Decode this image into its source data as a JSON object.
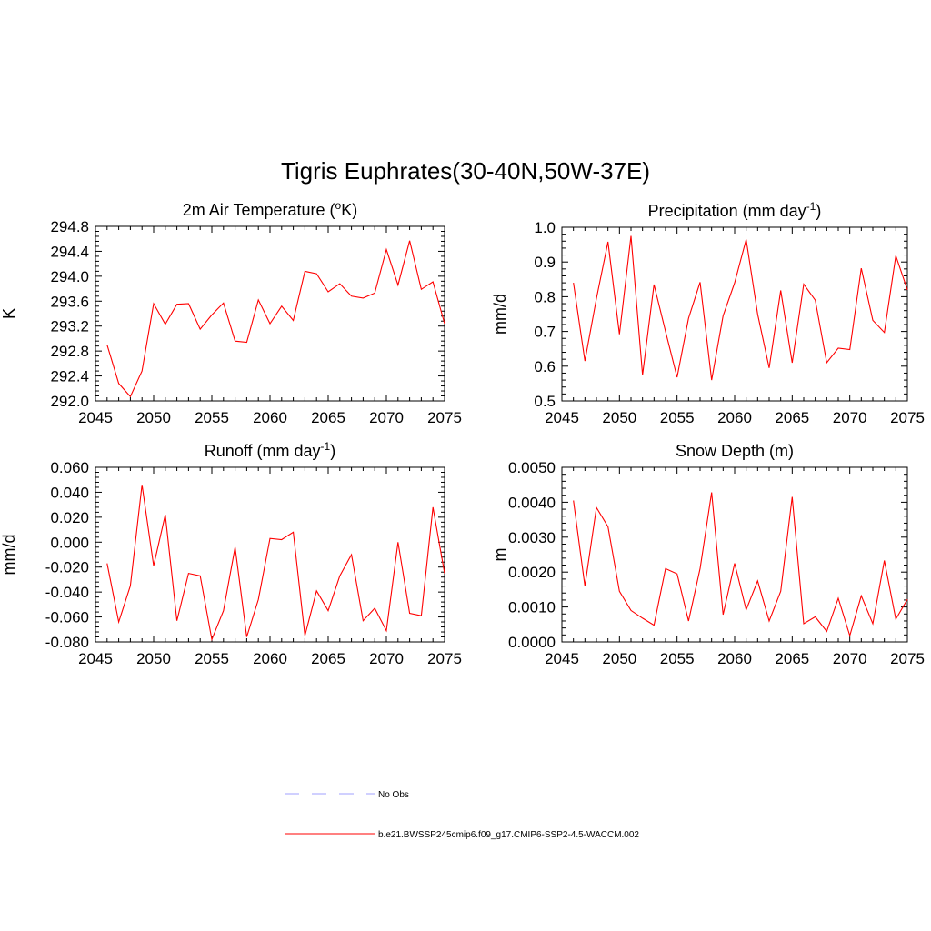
{
  "title": "Tigris Euphrates(30-40N,50W-37E)",
  "series_color": "#ff0000",
  "nobs_color": "#a0a0ff",
  "legend": [
    {
      "label": "No Obs",
      "style": "dashed"
    },
    {
      "label": "b.e21.BWSSP245cmip6.f09_g17.CMIP6-SSP2-4.5-WACCM.002",
      "style": "solid"
    }
  ],
  "chart_data": [
    {
      "type": "line",
      "title": "2m Air Temperature (oK)",
      "title_parts": [
        {
          "text": "2m Air Temperature (",
          "sup": false
        },
        {
          "text": "o",
          "sup": true
        },
        {
          "text": "K)",
          "sup": false
        }
      ],
      "ylabel": "K",
      "xlim": [
        2045,
        2075
      ],
      "ylim": [
        292.0,
        294.8
      ],
      "xticks": [
        2045,
        2050,
        2055,
        2060,
        2065,
        2070,
        2075
      ],
      "yticks": [
        "292.0",
        "292.4",
        "292.8",
        "293.2",
        "293.6",
        "294.0",
        "294.4",
        "294.8"
      ],
      "x": [
        2046,
        2047,
        2048,
        2049,
        2050,
        2051,
        2052,
        2053,
        2054,
        2055,
        2056,
        2057,
        2058,
        2059,
        2060,
        2061,
        2062,
        2063,
        2064,
        2065,
        2066,
        2067,
        2068,
        2069,
        2070,
        2071,
        2072,
        2073,
        2074,
        2075
      ],
      "values": [
        292.9,
        292.28,
        292.07,
        292.48,
        293.56,
        293.23,
        293.55,
        293.56,
        293.15,
        293.38,
        293.57,
        292.96,
        292.94,
        293.62,
        293.24,
        293.52,
        293.29,
        294.08,
        294.04,
        293.75,
        293.88,
        293.68,
        293.65,
        293.73,
        294.43,
        293.86,
        294.57,
        293.79,
        293.91,
        293.24
      ]
    },
    {
      "type": "line",
      "title": "Precipitation (mm day-1)",
      "title_parts": [
        {
          "text": "Precipitation (mm day",
          "sup": false
        },
        {
          "text": "-1",
          "sup": true
        },
        {
          "text": ")",
          "sup": false
        }
      ],
      "ylabel": "mm/d",
      "xlim": [
        2045,
        2075
      ],
      "ylim": [
        0.5,
        1.0
      ],
      "xticks": [
        2045,
        2050,
        2055,
        2060,
        2065,
        2070,
        2075
      ],
      "yticks": [
        "0.5",
        "0.6",
        "0.7",
        "0.8",
        "0.9",
        "1.0"
      ],
      "x": [
        2046,
        2047,
        2048,
        2049,
        2050,
        2051,
        2052,
        2053,
        2054,
        2055,
        2056,
        2057,
        2058,
        2059,
        2060,
        2061,
        2062,
        2063,
        2064,
        2065,
        2066,
        2067,
        2068,
        2069,
        2070,
        2071,
        2072,
        2073,
        2074,
        2075
      ],
      "values": [
        0.84,
        0.615,
        0.795,
        0.958,
        0.692,
        0.975,
        0.575,
        0.835,
        0.7,
        0.568,
        0.738,
        0.842,
        0.56,
        0.745,
        0.84,
        0.965,
        0.75,
        0.595,
        0.818,
        0.61,
        0.836,
        0.79,
        0.61,
        0.652,
        0.648,
        0.882,
        0.732,
        0.697,
        0.918,
        0.82
      ]
    },
    {
      "type": "line",
      "title": "Runoff (mm day-1)",
      "title_parts": [
        {
          "text": "Runoff (mm day",
          "sup": false
        },
        {
          "text": "-1",
          "sup": true
        },
        {
          "text": ")",
          "sup": false
        }
      ],
      "ylabel": "mm/d",
      "xlim": [
        2045,
        2075
      ],
      "ylim": [
        -0.08,
        0.06
      ],
      "xticks": [
        2045,
        2050,
        2055,
        2060,
        2065,
        2070,
        2075
      ],
      "yticks": [
        "-0.080",
        "-0.060",
        "-0.040",
        "-0.020",
        "0.000",
        "0.020",
        "0.040",
        "0.060"
      ],
      "x": [
        2046,
        2047,
        2048,
        2049,
        2050,
        2051,
        2052,
        2053,
        2054,
        2055,
        2056,
        2057,
        2058,
        2059,
        2060,
        2061,
        2062,
        2063,
        2064,
        2065,
        2066,
        2067,
        2068,
        2069,
        2070,
        2071,
        2072,
        2073,
        2074,
        2075
      ],
      "values": [
        -0.017,
        -0.064,
        -0.035,
        0.046,
        -0.019,
        0.022,
        -0.063,
        -0.025,
        -0.027,
        -0.078,
        -0.055,
        -0.004,
        -0.076,
        -0.046,
        0.003,
        0.002,
        0.008,
        -0.075,
        -0.039,
        -0.055,
        -0.027,
        -0.01,
        -0.063,
        -0.053,
        -0.071,
        0.0,
        -0.057,
        -0.059,
        0.028,
        -0.025
      ]
    },
    {
      "type": "line",
      "title": "Snow Depth (m)",
      "title_parts": [
        {
          "text": "Snow Depth (m)",
          "sup": false
        }
      ],
      "ylabel": "m",
      "xlim": [
        2045,
        2075
      ],
      "ylim": [
        0.0,
        0.005
      ],
      "xticks": [
        2045,
        2050,
        2055,
        2060,
        2065,
        2070,
        2075
      ],
      "yticks": [
        "0.0000",
        "0.0010",
        "0.0020",
        "0.0030",
        "0.0040",
        "0.0050"
      ],
      "x": [
        2046,
        2047,
        2048,
        2049,
        2050,
        2051,
        2052,
        2053,
        2054,
        2055,
        2056,
        2057,
        2058,
        2059,
        2060,
        2061,
        2062,
        2063,
        2064,
        2065,
        2066,
        2067,
        2068,
        2069,
        2070,
        2071,
        2072,
        2073,
        2074,
        2075
      ],
      "values": [
        0.00405,
        0.0016,
        0.00385,
        0.0033,
        0.00145,
        0.0009,
        0.00068,
        0.00048,
        0.0021,
        0.00195,
        0.0006,
        0.0021,
        0.00428,
        0.00078,
        0.00225,
        0.00092,
        0.00175,
        0.0006,
        0.00145,
        0.00415,
        0.00052,
        0.00072,
        0.0003,
        0.00125,
        0.00018,
        0.00132,
        0.00052,
        0.00233,
        0.00065,
        0.00122
      ]
    }
  ]
}
